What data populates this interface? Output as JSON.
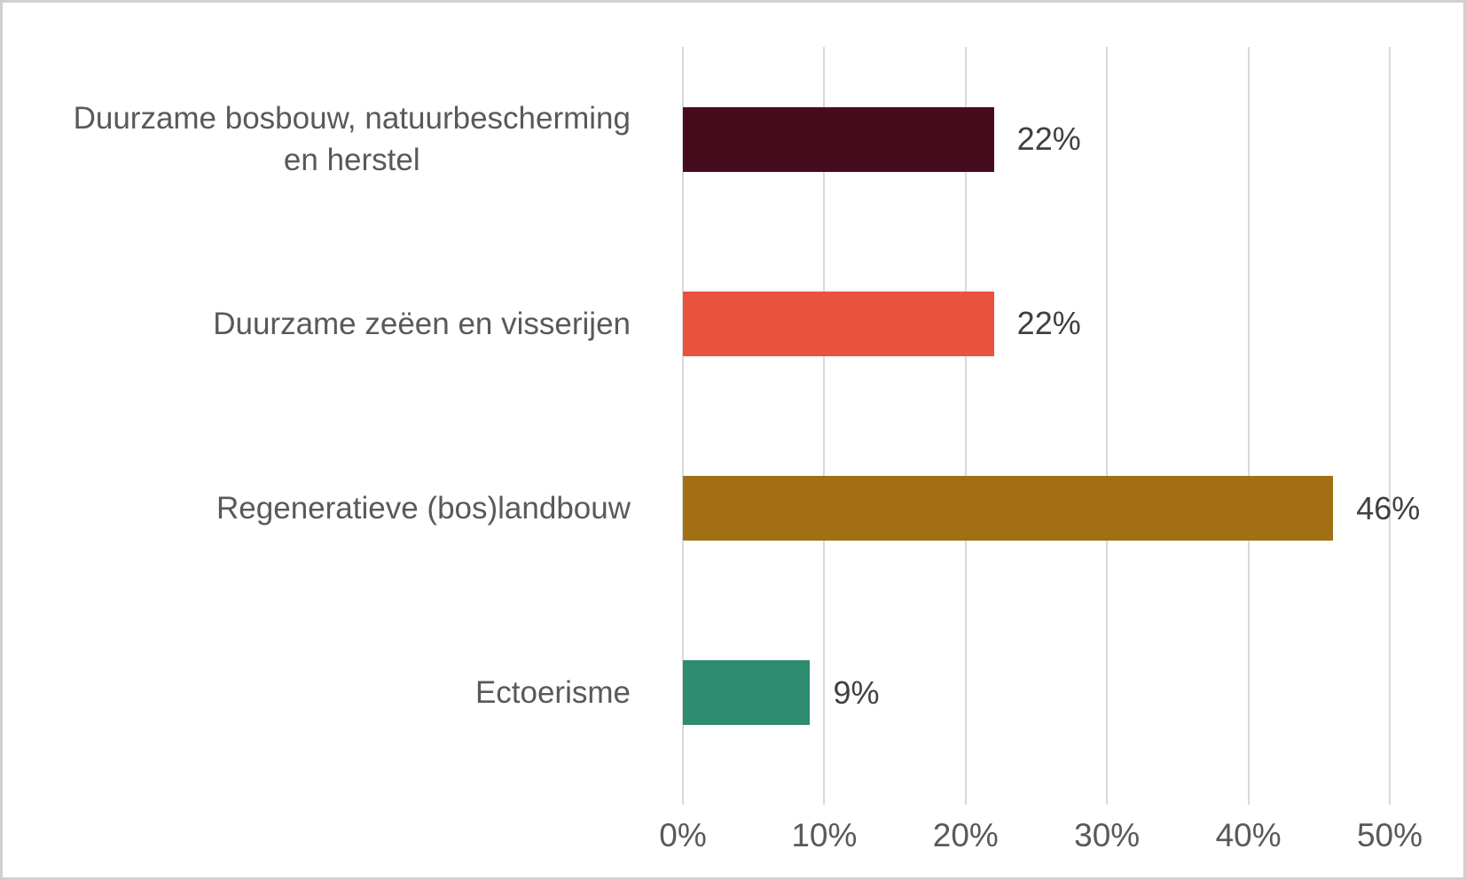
{
  "chart_data": {
    "type": "bar",
    "orientation": "horizontal",
    "title": "",
    "xlabel": "",
    "ylabel": "",
    "categories": [
      "Duurzame bosbouw, natuurbescherming\nen herstel",
      "Duurzame zeëen en visserijen",
      "Regeneratieve (bos)landbouw",
      "Ectoerisme"
    ],
    "values": [
      22,
      22,
      46,
      9
    ],
    "value_labels": [
      "22%",
      "22%",
      "46%",
      "9%"
    ],
    "bar_colors": [
      "#470b1e",
      "#e8523e",
      "#a26f15",
      "#2d8b6f"
    ],
    "xlim": [
      0,
      50
    ],
    "x_tick_values": [
      0,
      10,
      20,
      30,
      40,
      50
    ],
    "x_tick_labels": [
      "0%",
      "10%",
      "20%",
      "30%",
      "40%",
      "50%"
    ],
    "grid": true,
    "legend": false,
    "colors": {
      "gridline": "#d9d9d9",
      "label_text": "#595959",
      "value_text": "#404040",
      "frame_border": "#d0d0d0",
      "background": "#ffffff"
    }
  }
}
